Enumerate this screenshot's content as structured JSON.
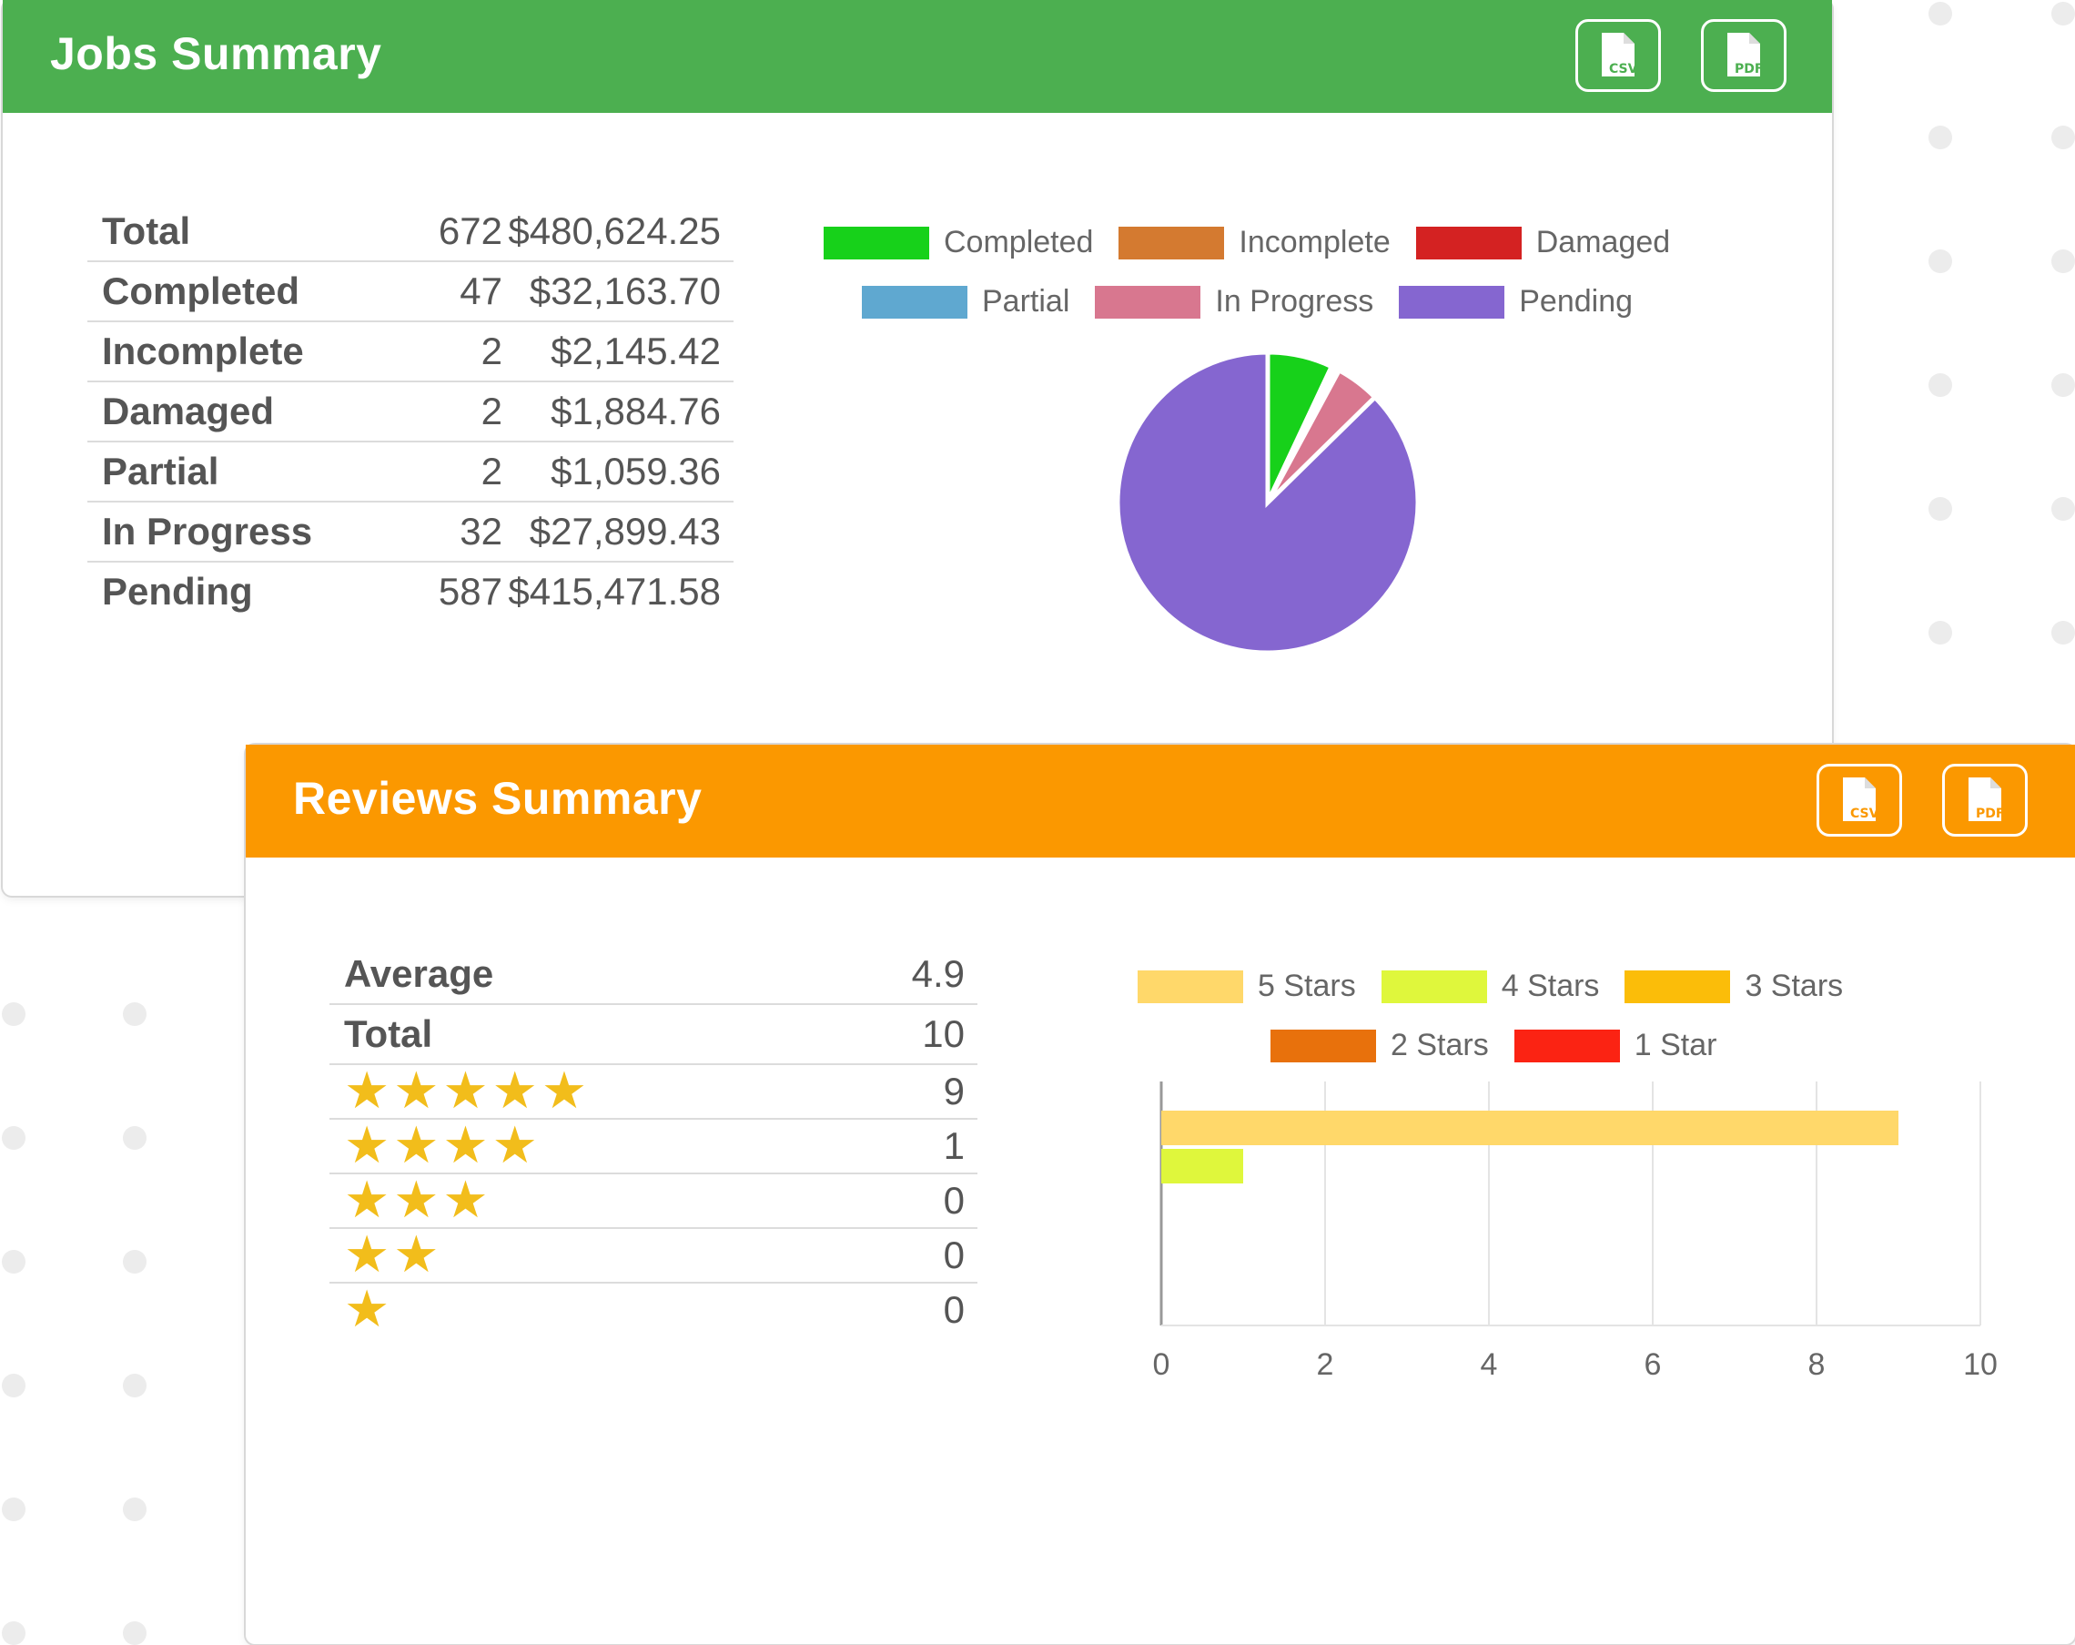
{
  "jobs": {
    "title": "Jobs Summary",
    "header_color": "#4caf50",
    "buttons": [
      {
        "label": "CSV",
        "icon": "csv-file-icon"
      },
      {
        "label": "PDF",
        "icon": "pdf-file-icon"
      }
    ],
    "rows": [
      {
        "label": "Total",
        "count": "672",
        "amount": "$480,624.25"
      },
      {
        "label": "Completed",
        "count": "47",
        "amount": "$32,163.70"
      },
      {
        "label": "Incomplete",
        "count": "2",
        "amount": "$2,145.42"
      },
      {
        "label": "Damaged",
        "count": "2",
        "amount": "$1,884.76"
      },
      {
        "label": "Partial",
        "count": "2",
        "amount": "$1,059.36"
      },
      {
        "label": "In Progress",
        "count": "32",
        "amount": "$27,899.43"
      },
      {
        "label": "Pending",
        "count": "587",
        "amount": "$415,471.58"
      }
    ]
  },
  "reviews": {
    "title": "Reviews Summary",
    "header_color": "#fb9800",
    "buttons": [
      {
        "label": "CSV",
        "icon": "csv-file-icon"
      },
      {
        "label": "PDF",
        "icon": "pdf-file-icon"
      }
    ],
    "summary": [
      {
        "label": "Average",
        "value": "4.9"
      },
      {
        "label": "Total",
        "value": "10"
      }
    ],
    "star_rows": [
      {
        "stars": 5,
        "value": "9"
      },
      {
        "stars": 4,
        "value": "1"
      },
      {
        "stars": 3,
        "value": "0"
      },
      {
        "stars": 2,
        "value": "0"
      },
      {
        "stars": 1,
        "value": "0"
      }
    ]
  },
  "chart_data": [
    {
      "type": "pie",
      "legend_position": "top",
      "series": [
        {
          "name": "Completed",
          "value": 47,
          "color": "#17d11a"
        },
        {
          "name": "Incomplete",
          "value": 2,
          "color": "#d47a30"
        },
        {
          "name": "Damaged",
          "value": 2,
          "color": "#d42222"
        },
        {
          "name": "Partial",
          "value": 2,
          "color": "#5fa8d0"
        },
        {
          "name": "In Progress",
          "value": 32,
          "color": "#d8778f"
        },
        {
          "name": "Pending",
          "value": 587,
          "color": "#8566d0"
        }
      ]
    },
    {
      "type": "bar",
      "orientation": "horizontal",
      "legend_position": "top",
      "grid": true,
      "xlim": [
        0,
        10
      ],
      "x_ticks": [
        "0",
        "2",
        "4",
        "6",
        "8",
        "10"
      ],
      "series": [
        {
          "name": "5 Stars",
          "value": 9,
          "color": "#ffd86a"
        },
        {
          "name": "4 Stars",
          "value": 1,
          "color": "#dff73c"
        },
        {
          "name": "3 Stars",
          "value": 0,
          "color": "#fbbd09"
        },
        {
          "name": "2 Stars",
          "value": 0,
          "color": "#e8710c"
        },
        {
          "name": "1 Star",
          "value": 0,
          "color": "#fb2313"
        }
      ]
    }
  ]
}
